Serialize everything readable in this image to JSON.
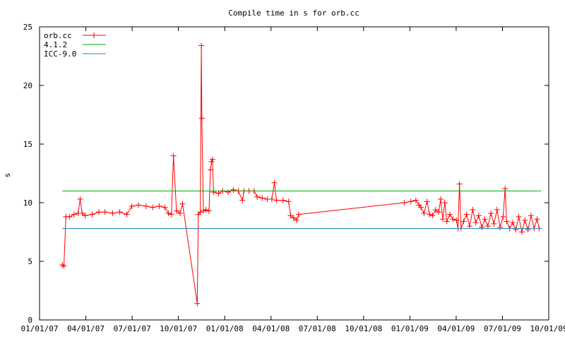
{
  "chart_data": {
    "type": "line",
    "title": "Compile time in s for orb.cc",
    "xlabel": "",
    "ylabel": "s",
    "ylim": [
      0,
      25
    ],
    "yticks": [
      0,
      5,
      10,
      15,
      20,
      25
    ],
    "x_tick_labels": [
      "01/01/07",
      "04/01/07",
      "07/01/07",
      "10/01/07",
      "01/01/08",
      "04/01/08",
      "07/01/08",
      "10/01/08",
      "01/01/09",
      "04/01/09",
      "07/01/09",
      "10/01/09"
    ],
    "xlim": [
      "2007-01-01",
      "2009-10-01"
    ],
    "legend_position": "top-left",
    "grid": false,
    "series": [
      {
        "name": "orb.cc",
        "color": "#ff0000",
        "marker": "plus",
        "points": [
          [
            "2007-02-15",
            4.7
          ],
          [
            "2007-02-18",
            4.6
          ],
          [
            "2007-02-22",
            8.8
          ],
          [
            "2007-03-01",
            8.8
          ],
          [
            "2007-03-10",
            9.0
          ],
          [
            "2007-03-18",
            9.1
          ],
          [
            "2007-03-22",
            10.3
          ],
          [
            "2007-03-26",
            9.1
          ],
          [
            "2007-04-01",
            8.9
          ],
          [
            "2007-04-15",
            9.0
          ],
          [
            "2007-04-28",
            9.2
          ],
          [
            "2007-05-10",
            9.2
          ],
          [
            "2007-05-25",
            9.1
          ],
          [
            "2007-06-08",
            9.2
          ],
          [
            "2007-06-22",
            9.0
          ],
          [
            "2007-07-02",
            9.7
          ],
          [
            "2007-07-15",
            9.8
          ],
          [
            "2007-07-30",
            9.7
          ],
          [
            "2007-08-12",
            9.6
          ],
          [
            "2007-08-25",
            9.7
          ],
          [
            "2007-09-05",
            9.6
          ],
          [
            "2007-09-12",
            9.1
          ],
          [
            "2007-09-18",
            9.0
          ],
          [
            "2007-09-22",
            14.0
          ],
          [
            "2007-09-28",
            9.3
          ],
          [
            "2007-10-05",
            9.1
          ],
          [
            "2007-10-10",
            9.9
          ],
          [
            "2007-11-08",
            1.4
          ],
          [
            "2007-11-10",
            9.0
          ],
          [
            "2007-11-14",
            9.2
          ],
          [
            "2007-11-16",
            23.4
          ],
          [
            "2007-11-17",
            17.2
          ],
          [
            "2007-11-20",
            9.3
          ],
          [
            "2007-11-25",
            9.4
          ],
          [
            "2007-12-01",
            9.3
          ],
          [
            "2007-12-04",
            12.8
          ],
          [
            "2007-12-06",
            13.5
          ],
          [
            "2007-12-08",
            13.7
          ],
          [
            "2007-12-10",
            10.9
          ],
          [
            "2007-12-20",
            10.8
          ],
          [
            "2007-12-28",
            11.0
          ],
          [
            "2008-01-08",
            10.9
          ],
          [
            "2008-01-18",
            11.1
          ],
          [
            "2008-01-28",
            11.0
          ],
          [
            "2008-02-05",
            10.2
          ],
          [
            "2008-02-08",
            11.0
          ],
          [
            "2008-02-18",
            11.0
          ],
          [
            "2008-02-28",
            11.0
          ],
          [
            "2008-03-05",
            10.5
          ],
          [
            "2008-03-15",
            10.4
          ],
          [
            "2008-03-25",
            10.3
          ],
          [
            "2008-04-03",
            10.3
          ],
          [
            "2008-04-08",
            11.7
          ],
          [
            "2008-04-12",
            10.2
          ],
          [
            "2008-04-25",
            10.2
          ],
          [
            "2008-05-06",
            10.1
          ],
          [
            "2008-05-10",
            8.9
          ],
          [
            "2008-05-16",
            8.7
          ],
          [
            "2008-05-22",
            8.5
          ],
          [
            "2008-05-26",
            9.0
          ],
          [
            "2008-12-20",
            10.0
          ],
          [
            "2009-01-02",
            10.1
          ],
          [
            "2009-01-12",
            10.2
          ],
          [
            "2009-01-18",
            9.8
          ],
          [
            "2009-01-22",
            9.6
          ],
          [
            "2009-01-28",
            9.1
          ],
          [
            "2009-02-03",
            10.1
          ],
          [
            "2009-02-08",
            9.0
          ],
          [
            "2009-02-14",
            8.9
          ],
          [
            "2009-02-20",
            9.4
          ],
          [
            "2009-02-26",
            9.2
          ],
          [
            "2009-03-02",
            10.3
          ],
          [
            "2009-03-06",
            8.6
          ],
          [
            "2009-03-10",
            10.0
          ],
          [
            "2009-03-14",
            8.4
          ],
          [
            "2009-03-20",
            9.0
          ],
          [
            "2009-03-26",
            8.6
          ],
          [
            "2009-04-02",
            8.5
          ],
          [
            "2009-04-05",
            7.8
          ],
          [
            "2009-04-08",
            11.6
          ],
          [
            "2009-04-11",
            7.8
          ],
          [
            "2009-04-16",
            8.4
          ],
          [
            "2009-04-22",
            9.0
          ],
          [
            "2009-04-28",
            8.0
          ],
          [
            "2009-05-04",
            9.4
          ],
          [
            "2009-05-10",
            8.3
          ],
          [
            "2009-05-16",
            8.9
          ],
          [
            "2009-05-22",
            7.9
          ],
          [
            "2009-05-28",
            8.6
          ],
          [
            "2009-06-03",
            8.0
          ],
          [
            "2009-06-09",
            9.1
          ],
          [
            "2009-06-15",
            8.2
          ],
          [
            "2009-06-21",
            9.4
          ],
          [
            "2009-06-27",
            7.9
          ],
          [
            "2009-07-03",
            8.8
          ],
          [
            "2009-07-07",
            11.2
          ],
          [
            "2009-07-10",
            8.4
          ],
          [
            "2009-07-16",
            7.8
          ],
          [
            "2009-07-22",
            8.3
          ],
          [
            "2009-07-28",
            7.7
          ],
          [
            "2009-08-03",
            8.8
          ],
          [
            "2009-08-09",
            7.5
          ],
          [
            "2009-08-15",
            8.5
          ],
          [
            "2009-08-21",
            7.7
          ],
          [
            "2009-08-27",
            8.9
          ],
          [
            "2009-09-02",
            7.8
          ],
          [
            "2009-09-08",
            8.6
          ],
          [
            "2009-09-12",
            7.8
          ]
        ]
      },
      {
        "name": "4.1.2",
        "color": "#00aa00",
        "points": [
          [
            "2007-02-15",
            11.0
          ],
          [
            "2009-09-16",
            11.0
          ]
        ]
      },
      {
        "name": "ICC-9.0",
        "color": "#1a8ac0",
        "points": [
          [
            "2007-02-15",
            7.8
          ],
          [
            "2009-09-16",
            7.8
          ]
        ]
      }
    ]
  }
}
